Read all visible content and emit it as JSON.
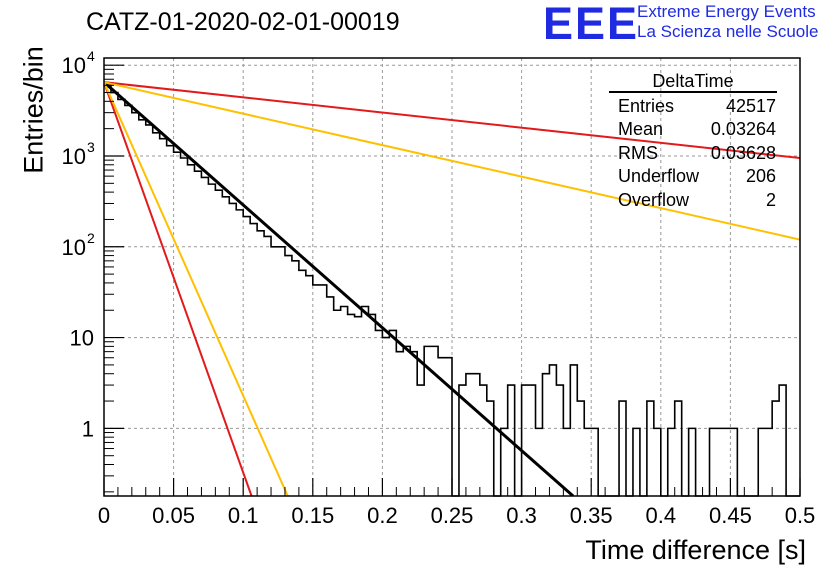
{
  "header": {
    "run_title": "CATZ-01-2020-02-01-00019",
    "logo_text": "EEE",
    "logo_line1": "Extreme Energy Events",
    "logo_line2": "La Scienza nelle Scuole",
    "logo_color": "#1e2be0"
  },
  "stats_box": {
    "title": "DeltaTime",
    "rows": [
      {
        "label": "Entries",
        "value": "42517"
      },
      {
        "label": "Mean",
        "value": "0.03264"
      },
      {
        "label": "RMS",
        "value": "0.03628"
      },
      {
        "label": "Underflow",
        "value": "206"
      },
      {
        "label": "Overflow",
        "value": "2"
      }
    ]
  },
  "chart_data": {
    "type": "line",
    "title": "",
    "xlabel": "Time difference [s]",
    "ylabel": "Entries/bin",
    "xlim": [
      0,
      0.5
    ],
    "ylim": [
      0.18,
      12000
    ],
    "y_scale": "log",
    "grid": true,
    "x_ticks": [
      "0",
      "0.05",
      "0.1",
      "0.15",
      "0.2",
      "0.25",
      "0.3",
      "0.35",
      "0.4",
      "0.45",
      "0.5"
    ],
    "y_ticks": [
      {
        "value": 1,
        "label": "1",
        "exp": ""
      },
      {
        "value": 10,
        "label": "10",
        "exp": ""
      },
      {
        "value": 100,
        "label": "10",
        "exp": "2"
      },
      {
        "value": 1000,
        "label": "10",
        "exp": "3"
      },
      {
        "value": 10000,
        "label": "10",
        "exp": "4"
      }
    ],
    "histogram": {
      "name": "DeltaTime",
      "color": "#000000",
      "bin_width": 0.005,
      "bin_start": 0,
      "counts": [
        6000,
        5000,
        4200,
        3600,
        3000,
        2500,
        2200,
        1800,
        1550,
        1300,
        1100,
        950,
        800,
        680,
        580,
        490,
        420,
        355,
        300,
        255,
        215,
        180,
        150,
        130,
        100,
        100,
        80,
        70,
        55,
        48,
        38,
        38,
        28,
        20,
        22,
        18,
        17,
        22,
        18,
        12,
        10,
        12,
        7,
        8,
        7,
        3,
        8,
        8,
        6,
        6,
        0,
        3,
        4,
        4,
        3,
        2,
        0,
        1,
        3,
        0,
        3,
        3,
        1,
        4,
        5,
        3,
        1,
        5,
        2,
        1,
        1,
        0,
        0,
        0,
        2,
        0,
        1,
        0,
        2,
        1,
        0,
        1,
        2,
        0,
        1,
        0,
        0,
        1,
        1,
        1,
        1,
        0,
        0,
        0,
        1,
        1,
        2,
        3,
        0,
        0
      ]
    },
    "fit_lines": [
      {
        "name": "fit",
        "color": "#000000",
        "points": [
          [
            0,
            6500
          ],
          [
            0.337,
            0.18
          ]
        ]
      },
      {
        "name": "red-steep",
        "color": "#e31a1c",
        "points": [
          [
            0,
            6500
          ],
          [
            0.106,
            0.18
          ]
        ]
      },
      {
        "name": "yellow-steep",
        "color": "#ffc000",
        "points": [
          [
            0,
            6500
          ],
          [
            0.132,
            0.18
          ]
        ]
      },
      {
        "name": "red-shallow",
        "color": "#e31a1c",
        "points": [
          [
            0,
            6500
          ],
          [
            0.5,
            950
          ]
        ]
      },
      {
        "name": "yellow-shallow",
        "color": "#ffc000",
        "points": [
          [
            0,
            6500
          ],
          [
            0.5,
            120
          ]
        ]
      }
    ]
  }
}
